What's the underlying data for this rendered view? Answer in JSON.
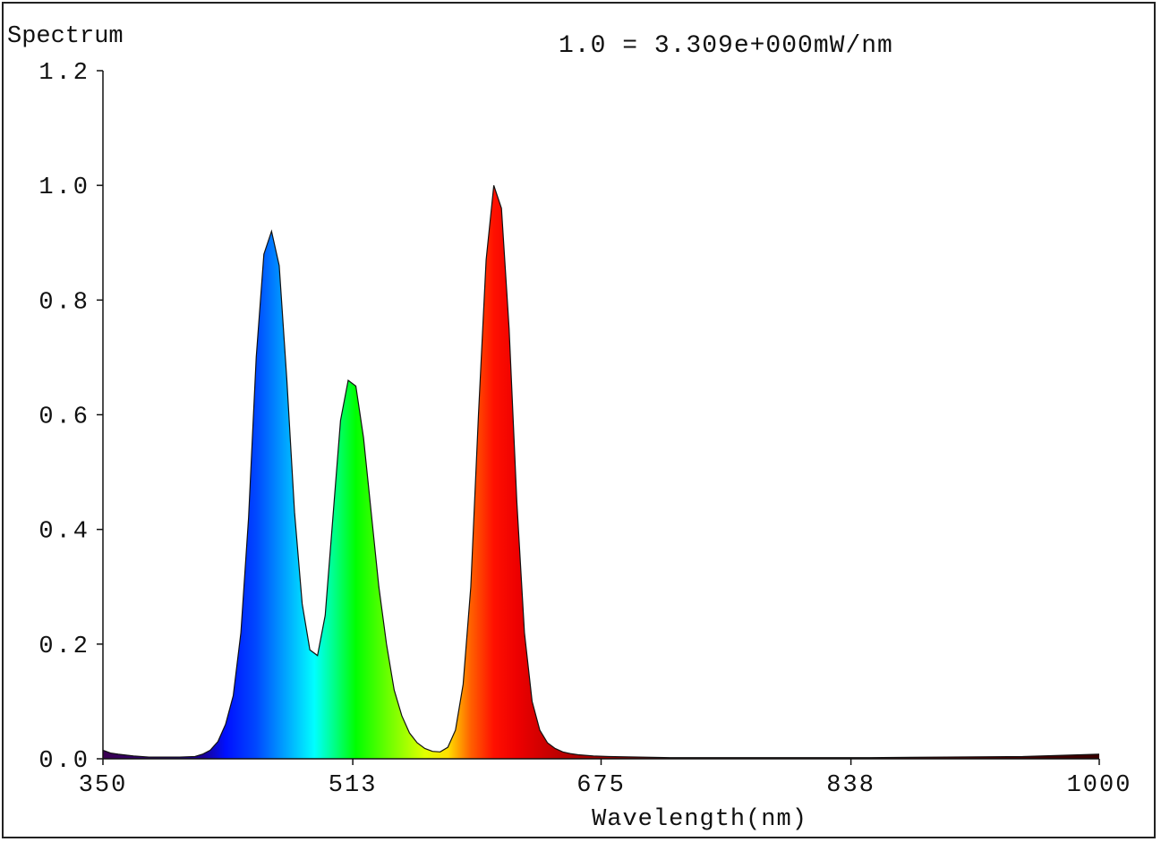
{
  "chart_data": {
    "type": "area",
    "title": "Spectrum",
    "annotation": "1.0 = 3.309e+000mW/nm",
    "xlabel": "Wavelength(nm)",
    "ylabel": "",
    "xlim": [
      350,
      1000
    ],
    "ylim": [
      0,
      1.2
    ],
    "x_ticks": [
      350,
      513,
      675,
      838,
      1000
    ],
    "x_tick_labels": [
      "350",
      "513",
      "675",
      "838",
      "1000"
    ],
    "y_ticks": [
      0.0,
      0.2,
      0.4,
      0.6,
      0.8,
      1.0,
      1.2
    ],
    "y_tick_labels": [
      "0.0",
      "0.2",
      "0.4",
      "0.6",
      "0.8",
      "1.0",
      "1.2"
    ],
    "grid": false,
    "fill": "wavelength-colored spectrum",
    "series": [
      {
        "x": [
          350,
          355,
          360,
          370,
          380,
          390,
          400,
          410,
          415,
          420,
          425,
          430,
          435,
          440,
          445,
          450,
          455,
          460,
          465,
          470,
          475,
          480,
          485,
          490,
          495,
          500,
          505,
          510,
          515,
          520,
          525,
          530,
          535,
          540,
          545,
          550,
          555,
          560,
          565,
          570,
          575,
          580,
          585,
          590,
          595,
          600,
          605,
          610,
          615,
          620,
          625,
          630,
          635,
          640,
          645,
          650,
          655,
          660,
          670,
          680,
          700,
          720,
          750,
          800,
          850,
          900,
          950,
          1000
        ],
        "values": [
          0.015,
          0.01,
          0.008,
          0.005,
          0.003,
          0.003,
          0.003,
          0.004,
          0.008,
          0.015,
          0.03,
          0.06,
          0.11,
          0.22,
          0.42,
          0.7,
          0.88,
          0.92,
          0.86,
          0.66,
          0.43,
          0.27,
          0.19,
          0.18,
          0.25,
          0.42,
          0.59,
          0.66,
          0.65,
          0.56,
          0.43,
          0.3,
          0.2,
          0.12,
          0.075,
          0.045,
          0.028,
          0.018,
          0.013,
          0.012,
          0.02,
          0.05,
          0.13,
          0.3,
          0.6,
          0.87,
          1.0,
          0.96,
          0.75,
          0.45,
          0.22,
          0.1,
          0.05,
          0.028,
          0.018,
          0.012,
          0.009,
          0.007,
          0.005,
          0.004,
          0.003,
          0.002,
          0.002,
          0.002,
          0.002,
          0.003,
          0.004,
          0.008
        ]
      }
    ]
  }
}
